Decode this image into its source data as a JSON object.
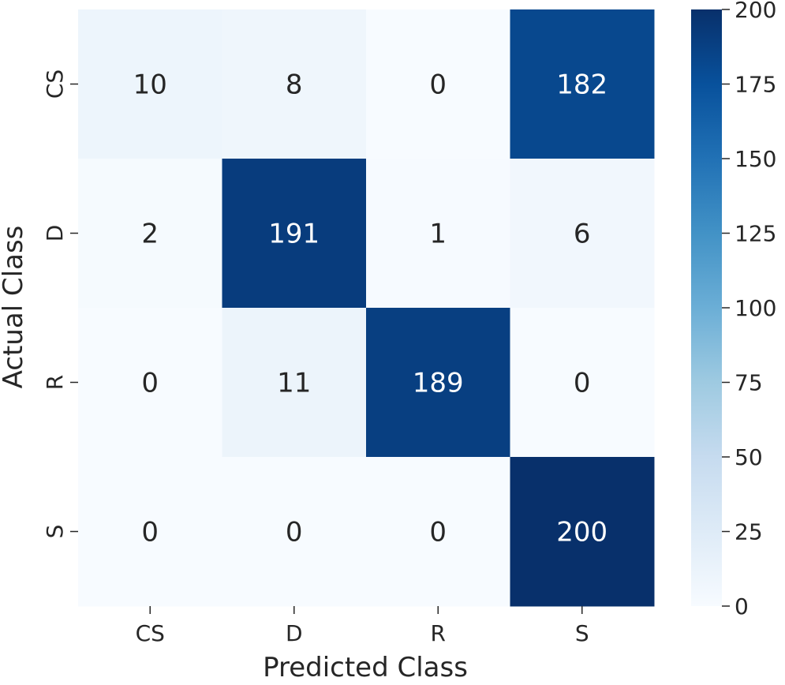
{
  "chart_data": {
    "type": "heatmap",
    "title": "",
    "xlabel": "Predicted Class",
    "ylabel": "Actual Class",
    "x_categories": [
      "CS",
      "D",
      "R",
      "S"
    ],
    "y_categories": [
      "CS",
      "D",
      "R",
      "S"
    ],
    "values": [
      [
        10,
        8,
        0,
        182
      ],
      [
        2,
        191,
        1,
        6
      ],
      [
        0,
        11,
        189,
        0
      ],
      [
        0,
        0,
        0,
        200
      ]
    ],
    "colorbar": {
      "min": 0,
      "max": 200,
      "ticks": [
        0,
        25,
        50,
        75,
        100,
        125,
        150,
        175,
        200
      ]
    },
    "colormap": "Blues",
    "grid": false,
    "legend": "colorbar-right"
  }
}
